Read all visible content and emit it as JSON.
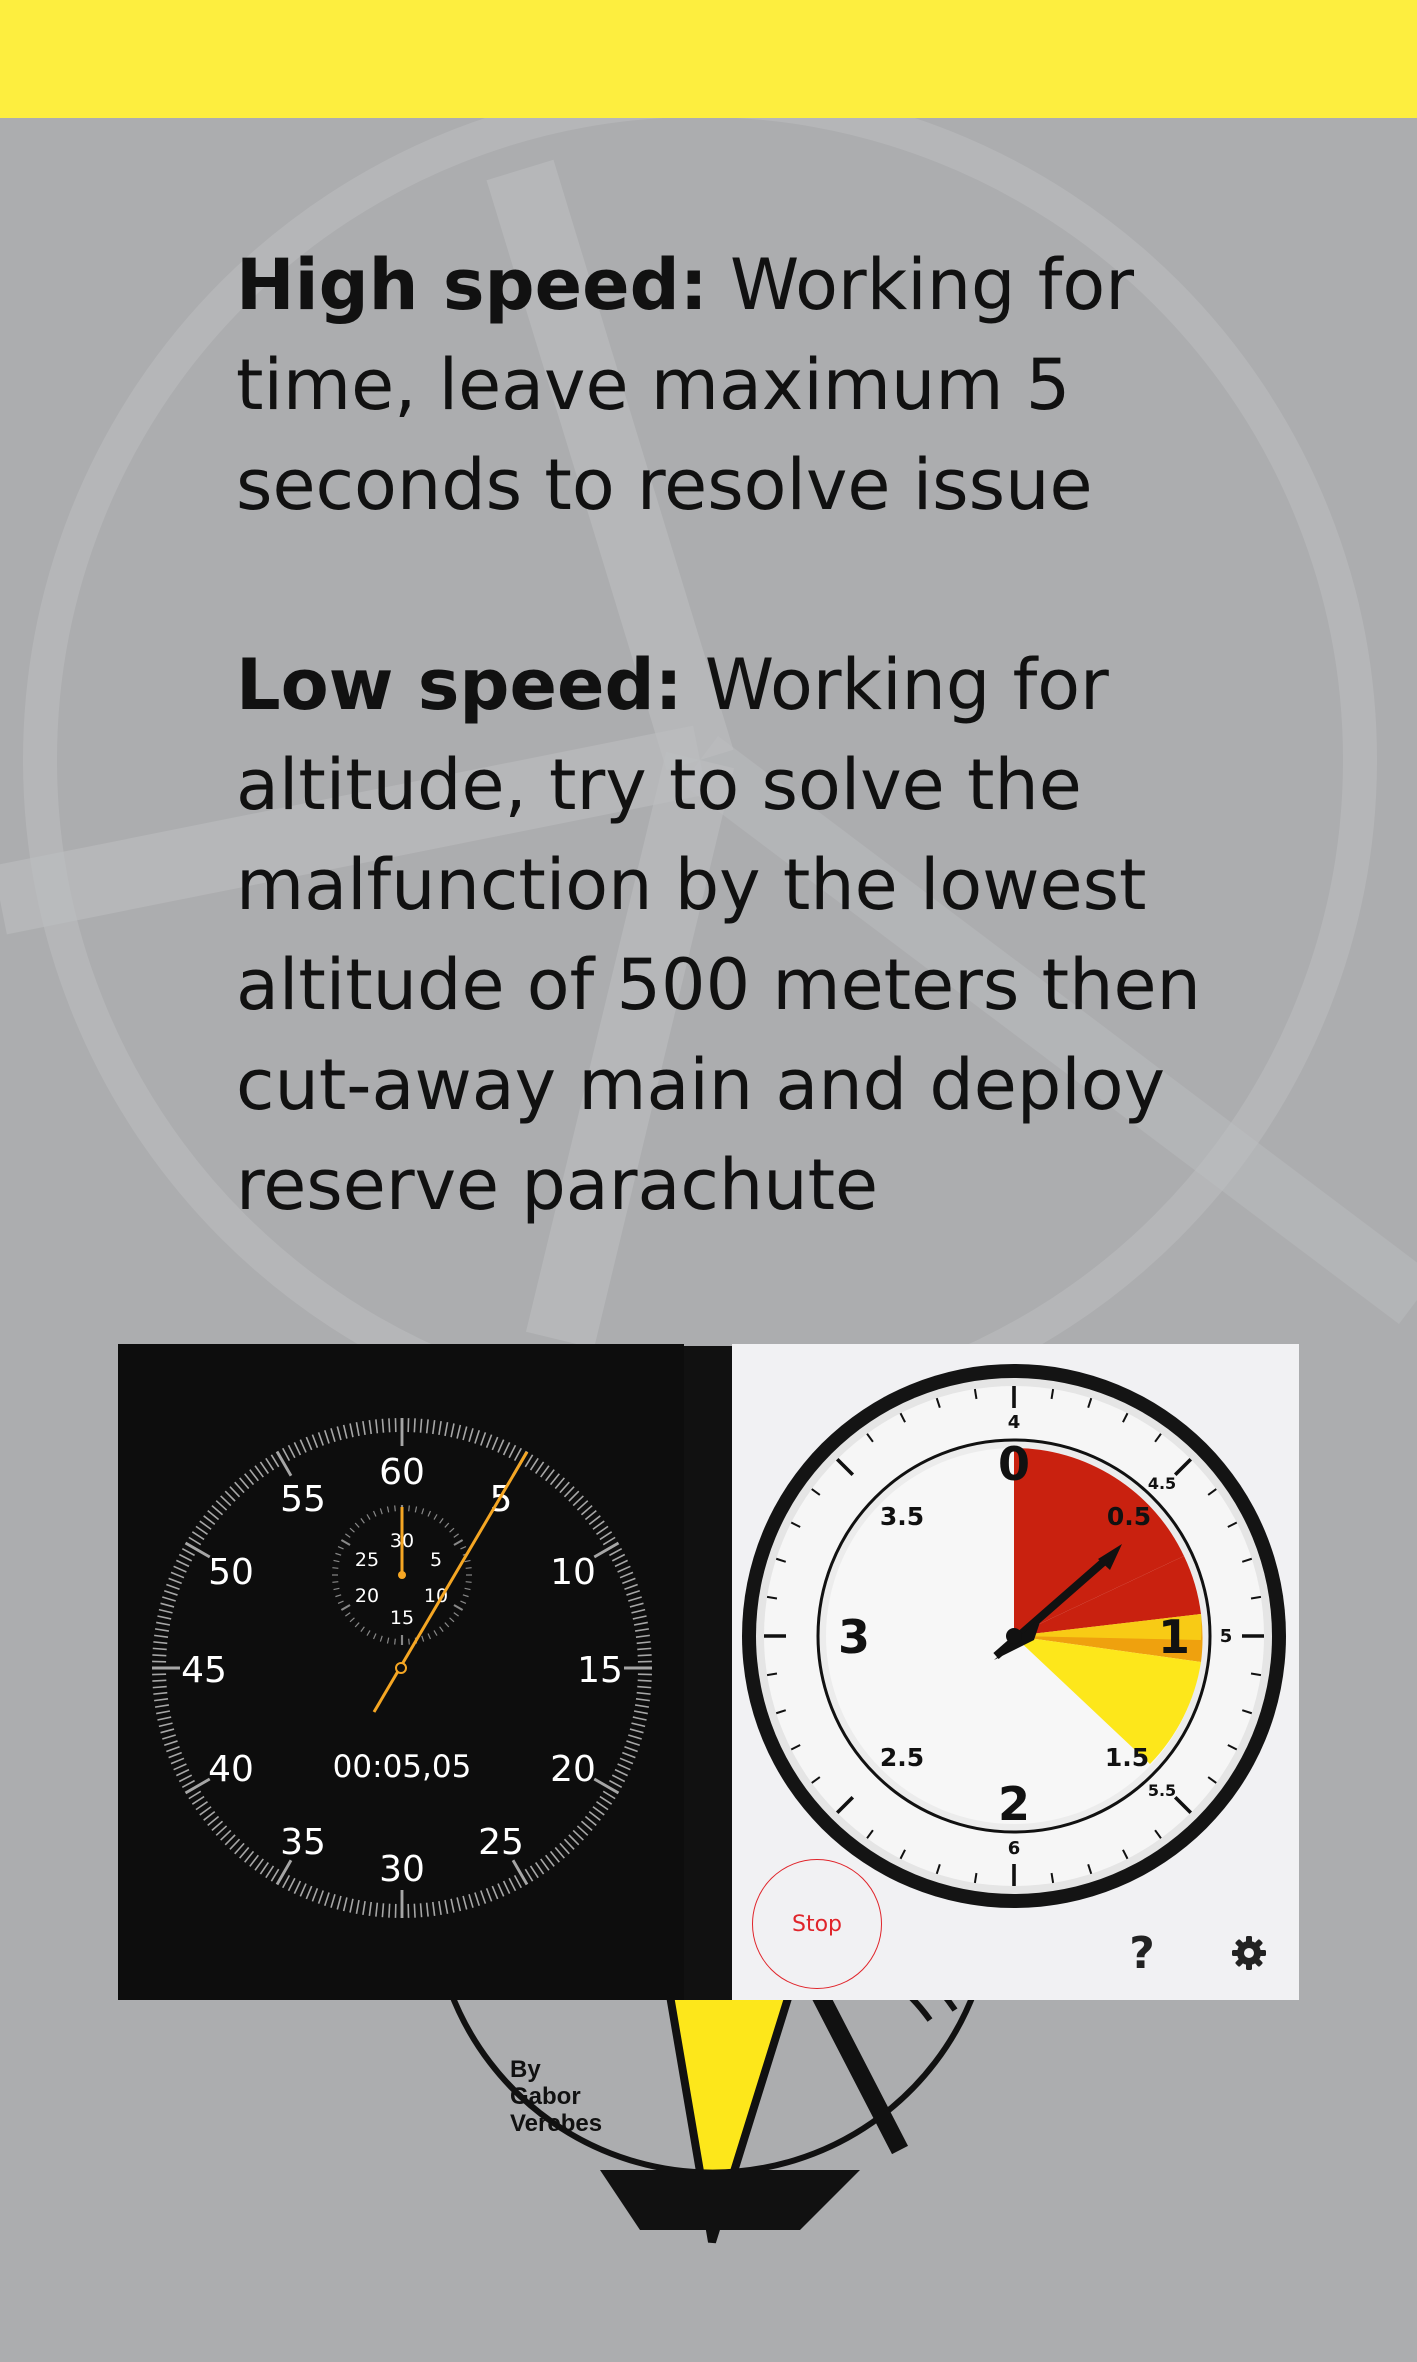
{
  "banner": {
    "color": "#fdee3f"
  },
  "high_speed": {
    "label": "High speed:",
    "lines": [
      "Working for",
      "time, leave maximum 5",
      "seconds to resolve issue"
    ]
  },
  "low_speed": {
    "label": "Low speed:",
    "lines": [
      "Working for",
      "altitude, try to solve the",
      "malfunction by the lowest",
      "altitude of 500 meters then",
      "cut-away main and deploy",
      "reserve parachute"
    ]
  },
  "stopwatch": {
    "main_labels": [
      "60",
      "5",
      "10",
      "15",
      "20",
      "25",
      "30",
      "35",
      "40",
      "45",
      "50",
      "55"
    ],
    "sub_labels": [
      "30",
      "5",
      "10",
      "15",
      "20",
      "25"
    ],
    "time": "00:05,05",
    "accent": "#f5a623"
  },
  "altimeter": {
    "major_labels": [
      "0",
      "1",
      "2",
      "3"
    ],
    "half_labels": [
      "0.5",
      "1.5",
      "2.5",
      "3.5"
    ],
    "outer_labels": [
      "4",
      "4.5",
      "5",
      "5.5",
      "6"
    ],
    "stop_label": "Stop",
    "help_label": "?",
    "help_icon": "question-mark-icon",
    "settings_icon": "gear-icon",
    "zone_colors": {
      "red": "#c9210f",
      "orange": "#efa10e",
      "yellow": "#fde71b"
    }
  },
  "credit": {
    "lines": [
      "By",
      "Gabor",
      "Verebes"
    ]
  }
}
